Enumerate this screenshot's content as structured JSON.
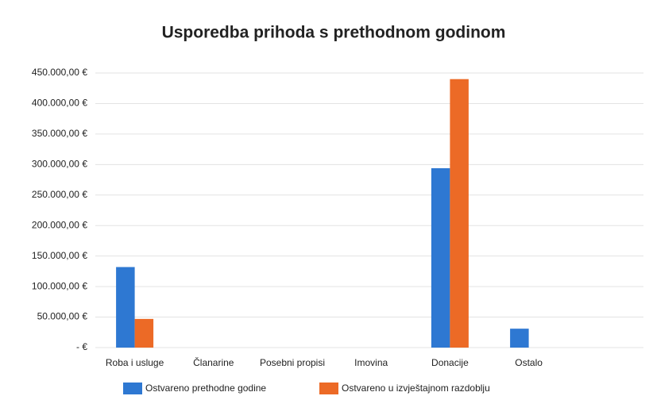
{
  "chart_data": {
    "type": "bar",
    "title": "Usporedba prihoda s prethodnom godinom",
    "categories": [
      "Roba i usluge",
      "Članarine",
      "Posebni propisi",
      "Imovina",
      "Donacije",
      "Ostalo"
    ],
    "series": [
      {
        "name": "Ostvareno prethodne godine",
        "color": "#2e78d2",
        "values": [
          132000,
          0,
          0,
          0,
          294000,
          31000
        ]
      },
      {
        "name": "Ostvareno u izvještajnom razdoblju",
        "color": "#ec6a26",
        "values": [
          47000,
          0,
          0,
          0,
          440000,
          0
        ]
      }
    ],
    "ylim": [
      0,
      450000
    ],
    "yticks": [
      {
        "value": 0,
        "label": "-   €"
      },
      {
        "value": 50000,
        "label": "50.000,00 €"
      },
      {
        "value": 100000,
        "label": "100.000,00 €"
      },
      {
        "value": 150000,
        "label": "150.000,00 €"
      },
      {
        "value": 200000,
        "label": "200.000,00 €"
      },
      {
        "value": 250000,
        "label": "250.000,00 €"
      },
      {
        "value": 300000,
        "label": "300.000,00 €"
      },
      {
        "value": 350000,
        "label": "350.000,00 €"
      },
      {
        "value": 400000,
        "label": "400.000,00 €"
      },
      {
        "value": 450000,
        "label": "450.000,00 €"
      }
    ],
    "grid": true,
    "legend": "bottom"
  }
}
